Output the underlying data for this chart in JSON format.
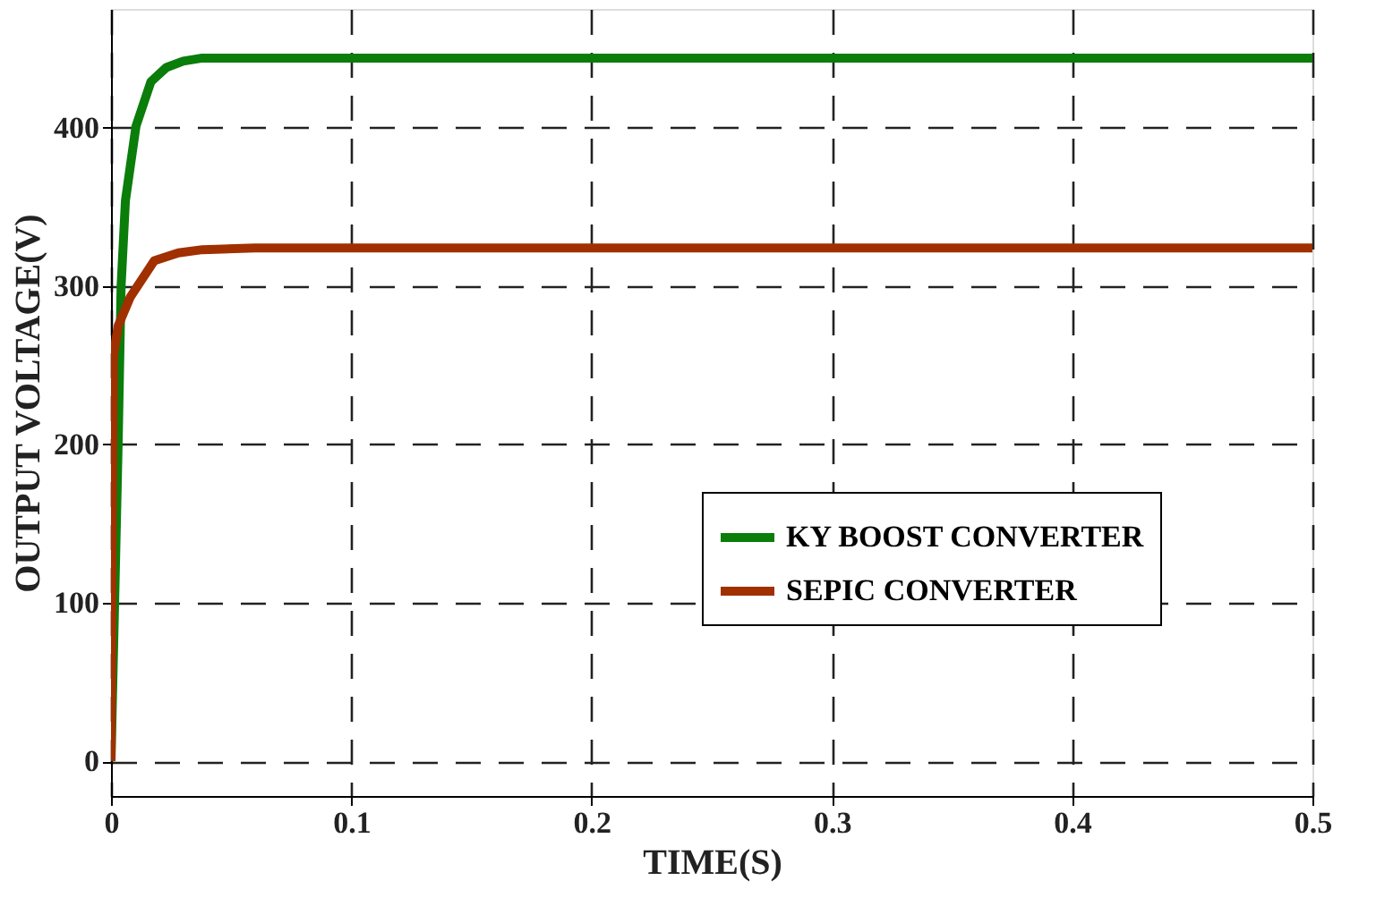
{
  "chart_data": {
    "type": "line",
    "xlabel": "TIME(S)",
    "ylabel": "OUTPUT VOLTAGE(V)",
    "xlim": [
      0,
      0.5
    ],
    "xticks": [
      0,
      0.1,
      0.2,
      0.3,
      0.4,
      0.5
    ],
    "ylim": [
      -22,
      475
    ],
    "yticks": [
      0,
      100,
      200,
      300,
      400
    ],
    "grid": true,
    "legend": "bottom right",
    "line_style": "solid",
    "series": [
      {
        "name": "KY BOOST CONVERTER",
        "color": "#0a7d0a",
        "x": [
          0,
          0.0015,
          0.003,
          0.0042,
          0.006,
          0.0104,
          0.0166,
          0.023,
          0.03,
          0.038,
          0.06,
          0.1,
          0.2,
          0.3,
          0.4,
          0.5
        ],
        "values": [
          0,
          100,
          203,
          300,
          354,
          401,
          429,
          438,
          442,
          444,
          444,
          444,
          444,
          444,
          444,
          444
        ]
      },
      {
        "name": "SEPIC CONVERTER",
        "color": "#a03000",
        "x": [
          0,
          0.0005,
          0.001,
          0.003,
          0.008,
          0.018,
          0.028,
          0.038,
          0.06,
          0.1,
          0.2,
          0.3,
          0.4,
          0.5
        ],
        "values": [
          0,
          150,
          256,
          275,
          293,
          316,
          321,
          323,
          324,
          324,
          324,
          324,
          324,
          324
        ]
      }
    ]
  }
}
